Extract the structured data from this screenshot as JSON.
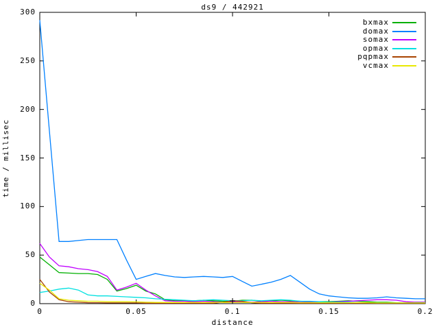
{
  "window": {
    "background": "#ffffff",
    "foreground": "#000000"
  },
  "chart_data": {
    "type": "line",
    "title": "ds9 / 442921",
    "xlabel": "distance",
    "ylabel": "time / millisec",
    "xlim": [
      0,
      0.2
    ],
    "ylim": [
      0,
      300
    ],
    "grid": false,
    "legend_position": "top-right-inside",
    "x_ticks": {
      "values": [
        0,
        0.05,
        0.1,
        0.15,
        0.2
      ],
      "labels": [
        "0",
        "0.05",
        "0.1",
        "0.15",
        "0.2"
      ]
    },
    "y_ticks": {
      "values": [
        0,
        50,
        100,
        150,
        200,
        250,
        300
      ],
      "labels": [
        "0",
        "50",
        "100",
        "150",
        "200",
        "250",
        "300"
      ]
    },
    "x": [
      0,
      0.005,
      0.01,
      0.015,
      0.02,
      0.025,
      0.03,
      0.035,
      0.04,
      0.045,
      0.05,
      0.055,
      0.06,
      0.065,
      0.07,
      0.075,
      0.08,
      0.085,
      0.09,
      0.095,
      0.1,
      0.105,
      0.11,
      0.115,
      0.12,
      0.125,
      0.13,
      0.135,
      0.14,
      0.145,
      0.15,
      0.155,
      0.16,
      0.165,
      0.17,
      0.175,
      0.18,
      0.185,
      0.19,
      0.195,
      0.2
    ],
    "series": [
      {
        "name": "bxmax",
        "color": "#00b000",
        "values": [
          48,
          40,
          32,
          31.5,
          31,
          31,
          30,
          25,
          13,
          15.5,
          19,
          13,
          10,
          4,
          3,
          3,
          3,
          3.5,
          3,
          2.5,
          2.5,
          3.5,
          3.5,
          2.5,
          3,
          3.5,
          3,
          2.5,
          2,
          2,
          2,
          2.5,
          3,
          2.5,
          2,
          1.5,
          1.5,
          1,
          0.8,
          1.5,
          1.5
        ]
      },
      {
        "name": "domax",
        "color": "#0080ff",
        "values": [
          292,
          178,
          64,
          64,
          65,
          66,
          66,
          66,
          66,
          45,
          25,
          28,
          31,
          29,
          27.5,
          27,
          27.5,
          28,
          27.5,
          27,
          28,
          23,
          18,
          20,
          22,
          25,
          29,
          22,
          15,
          10,
          8,
          7,
          6,
          5.5,
          5.5,
          6,
          7,
          6,
          5.5,
          5,
          5
        ]
      },
      {
        "name": "somax",
        "color": "#bf00ff",
        "values": [
          62,
          48,
          39,
          38,
          36,
          35,
          33,
          28,
          14,
          17,
          21,
          14,
          8,
          3,
          2.5,
          2.5,
          2,
          2.5,
          2,
          1.5,
          2,
          2,
          1.5,
          2,
          2.5,
          2,
          2,
          1.5,
          1.5,
          1.5,
          1.5,
          2,
          2.5,
          3,
          3.5,
          4,
          4,
          3.5,
          2,
          1.5,
          1.5
        ]
      },
      {
        "name": "opmax",
        "color": "#00e0e0",
        "values": [
          11.5,
          13,
          15,
          16,
          14,
          9,
          8,
          8,
          7.5,
          7,
          6.5,
          6,
          5,
          4.5,
          4,
          3.5,
          3,
          3.5,
          4,
          3.5,
          3,
          3,
          3.5,
          3,
          3.5,
          4,
          3.5,
          2.5,
          2.5,
          2,
          1.5,
          1.5,
          1.5,
          1,
          1,
          1,
          1,
          0.8,
          0.8,
          1,
          1
        ]
      },
      {
        "name": "pqpmax",
        "color": "#a84300",
        "values": [
          25,
          12,
          4,
          2,
          1.5,
          1,
          1,
          0.8,
          0.8,
          0.8,
          0.8,
          0.5,
          0.5,
          0.5,
          0.5,
          0.5,
          0.5,
          0.5,
          0.5,
          1.5,
          3,
          2.5,
          1,
          0.5,
          0.5,
          0.5,
          0.5,
          0.5,
          0.5,
          0.5,
          0.5,
          0.5,
          0.5,
          0.5,
          0.5,
          0.5,
          0.5,
          0.5,
          0.5,
          0.5,
          0.5
        ]
      },
      {
        "name": "vcmax",
        "color": "#e8e800",
        "values": [
          21,
          14,
          5,
          3.5,
          3,
          2.5,
          2.5,
          2,
          2,
          2,
          1.8,
          1.5,
          1.3,
          1.2,
          1.2,
          1.2,
          1.2,
          1.2,
          1.2,
          1.2,
          1.2,
          1.2,
          1.2,
          1.2,
          1.2,
          1.2,
          1.2,
          1,
          1,
          1,
          1,
          1,
          1,
          1,
          1,
          0.8,
          0.8,
          0.8,
          0.8,
          0.8,
          0.8
        ]
      }
    ],
    "marker": {
      "symbol": "+",
      "x": 0.1,
      "y": 2.8,
      "color": "#000000"
    }
  }
}
